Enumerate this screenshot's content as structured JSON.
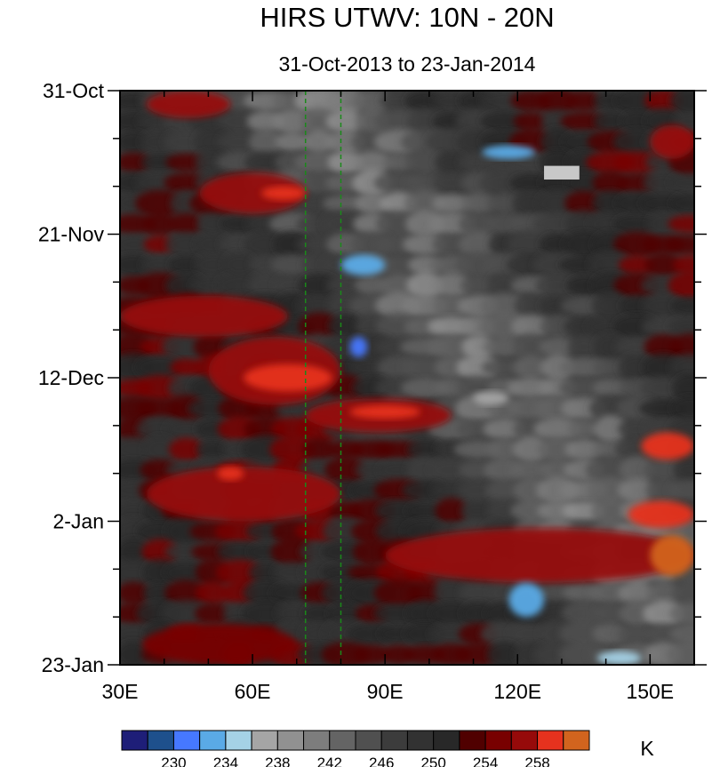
{
  "chart_data": {
    "type": "heatmap",
    "title": "HIRS UTWV: 10N - 20N",
    "subtitle": "31-Oct-2013 to 23-Jan-2014",
    "x_axis": {
      "range": [
        30,
        160
      ],
      "ticks": [
        {
          "value": 30,
          "label": "30E"
        },
        {
          "value": 60,
          "label": "60E"
        },
        {
          "value": 90,
          "label": "90E"
        },
        {
          "value": 120,
          "label": "120E"
        },
        {
          "value": 150,
          "label": "150E"
        }
      ],
      "minor_step": 10
    },
    "y_axis": {
      "range_days": [
        0,
        84
      ],
      "reversed": true,
      "ticks": [
        {
          "day": 0,
          "label": "31-Oct"
        },
        {
          "day": 21,
          "label": "21-Nov"
        },
        {
          "day": 42,
          "label": "12-Dec"
        },
        {
          "day": 63,
          "label": "2-Jan"
        },
        {
          "day": 84,
          "label": "23-Jan"
        }
      ],
      "minor_step_days": 7
    },
    "reference_lines": [
      {
        "x": 72,
        "color": "#1a8a1a",
        "style": "dashed"
      },
      {
        "x": 80,
        "color": "#1a8a1a",
        "style": "dashed"
      }
    ],
    "colorbar": {
      "unit": "K",
      "levels": [
        228,
        230,
        232,
        234,
        236,
        238,
        240,
        242,
        244,
        246,
        248,
        250,
        252,
        254,
        256,
        258,
        260
      ],
      "labels": [
        "230",
        "234",
        "238",
        "242",
        "246",
        "250",
        "254",
        "258"
      ],
      "colors": [
        "#1e1e78",
        "#1e508c",
        "#4678ff",
        "#5aaae6",
        "#a5d2e6",
        "#a5a5a5",
        "#919191",
        "#7d7d7d",
        "#646464",
        "#505050",
        "#3c3c3c",
        "#323232",
        "#282828",
        "#500000",
        "#780000",
        "#960a0a",
        "#e6321e",
        "#d2641e"
      ]
    },
    "features": [
      {
        "kind": "warm",
        "level": 256,
        "x": [
          36,
          55
        ],
        "day": [
          0,
          4
        ]
      },
      {
        "kind": "warm",
        "level": 256,
        "x": [
          48,
          72
        ],
        "day": [
          12,
          18
        ]
      },
      {
        "kind": "warm",
        "level": 258,
        "x": [
          62,
          72
        ],
        "day": [
          14,
          16
        ]
      },
      {
        "kind": "warm",
        "level": 256,
        "x": [
          30,
          68
        ],
        "day": [
          30,
          36
        ]
      },
      {
        "kind": "warm",
        "level": 256,
        "x": [
          50,
          80
        ],
        "day": [
          36,
          46
        ]
      },
      {
        "kind": "warm",
        "level": 258,
        "x": [
          58,
          78
        ],
        "day": [
          40,
          44
        ]
      },
      {
        "kind": "warm",
        "level": 256,
        "x": [
          72,
          105
        ],
        "day": [
          45,
          50
        ]
      },
      {
        "kind": "warm",
        "level": 258,
        "x": [
          82,
          98
        ],
        "day": [
          46,
          48
        ]
      },
      {
        "kind": "warm",
        "level": 256,
        "x": [
          36,
          80
        ],
        "day": [
          55,
          63
        ]
      },
      {
        "kind": "warm",
        "level": 258,
        "x": [
          52,
          58
        ],
        "day": [
          55,
          57
        ]
      },
      {
        "kind": "warm",
        "level": 256,
        "x": [
          90,
          160
        ],
        "day": [
          64,
          72
        ]
      },
      {
        "kind": "warm",
        "level": 260,
        "x": [
          150,
          160
        ],
        "day": [
          65,
          71
        ]
      },
      {
        "kind": "warm",
        "level": 258,
        "x": [
          145,
          160
        ],
        "day": [
          60,
          64
        ]
      },
      {
        "kind": "warm",
        "level": 258,
        "x": [
          148,
          160
        ],
        "day": [
          50,
          54
        ]
      },
      {
        "kind": "warm",
        "level": 256,
        "x": [
          150,
          160
        ],
        "day": [
          5,
          10
        ]
      },
      {
        "kind": "warm",
        "level": 254,
        "x": [
          35,
          70
        ],
        "day": [
          78,
          84
        ]
      },
      {
        "kind": "cold",
        "level": 232,
        "x": [
          112,
          124
        ],
        "day": [
          8,
          10
        ]
      },
      {
        "kind": "cold",
        "level": 232,
        "x": [
          80,
          90
        ],
        "day": [
          24,
          27
        ]
      },
      {
        "kind": "cold",
        "level": 230,
        "x": [
          82,
          86
        ],
        "day": [
          36,
          39
        ]
      },
      {
        "kind": "cold",
        "level": 236,
        "x": [
          110,
          118
        ],
        "day": [
          44,
          46
        ]
      },
      {
        "kind": "cold",
        "level": 232,
        "x": [
          118,
          126
        ],
        "day": [
          72,
          77
        ]
      },
      {
        "kind": "cold",
        "level": 234,
        "x": [
          138,
          148
        ],
        "day": [
          82,
          84
        ]
      },
      {
        "kind": "missing",
        "x": [
          126,
          134
        ],
        "day": [
          11,
          13
        ]
      }
    ]
  }
}
